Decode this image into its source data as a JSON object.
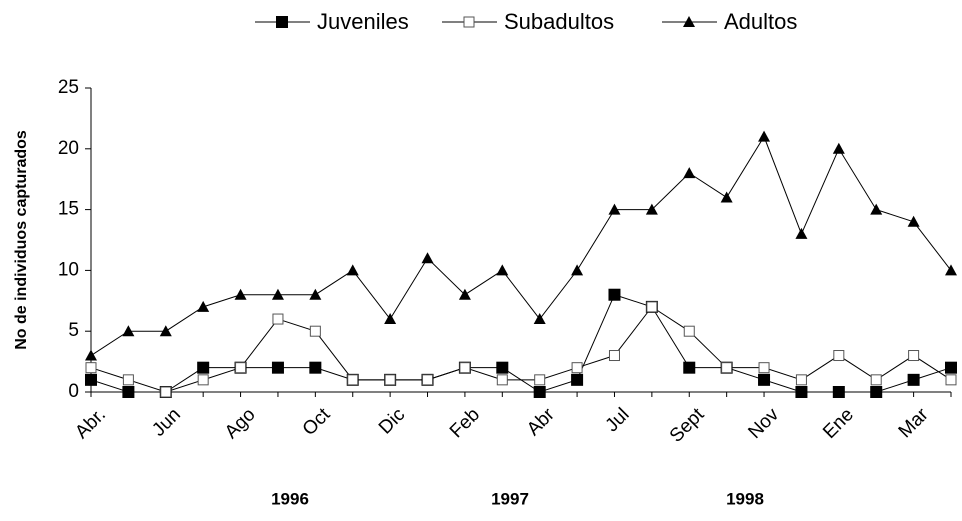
{
  "chart_data": {
    "type": "line",
    "y_label": "No de individuos capturados",
    "categories": [
      "Abr.",
      null,
      "Jun",
      null,
      "Ago",
      null,
      "Oct",
      null,
      "Dic",
      null,
      "Feb",
      null,
      "Abr",
      null,
      "Jul",
      null,
      "Sept",
      null,
      "Nov",
      null,
      "Ene",
      null,
      "Mar",
      null
    ],
    "series": [
      {
        "name": "Juveniles",
        "color": "#000000",
        "marker": "filled-square",
        "values": [
          1,
          0,
          0,
          2,
          2,
          2,
          2,
          1,
          1,
          1,
          2,
          2,
          0,
          1,
          8,
          7,
          2,
          2,
          1,
          0,
          0,
          0,
          1,
          2
        ]
      },
      {
        "name": "Subadultos",
        "color": "#000000",
        "marker": "open-square",
        "values": [
          2,
          1,
          0,
          1,
          2,
          6,
          5,
          1,
          1,
          1,
          2,
          1,
          1,
          2,
          3,
          7,
          5,
          2,
          2,
          1,
          3,
          1,
          3,
          1
        ]
      },
      {
        "name": "Adultos",
        "color": "#000000",
        "marker": "triangle",
        "values": [
          3,
          5,
          5,
          7,
          8,
          8,
          8,
          10,
          6,
          11,
          8,
          10,
          6,
          10,
          15,
          15,
          18,
          16,
          21,
          13,
          20,
          15,
          14,
          10
        ]
      }
    ],
    "ylim": [
      0,
      25
    ],
    "yticks": [
      0,
      5,
      10,
      15,
      20,
      25
    ],
    "year_labels": [
      "1996",
      "1997",
      "1998"
    ],
    "legend": "top",
    "grid": false
  }
}
